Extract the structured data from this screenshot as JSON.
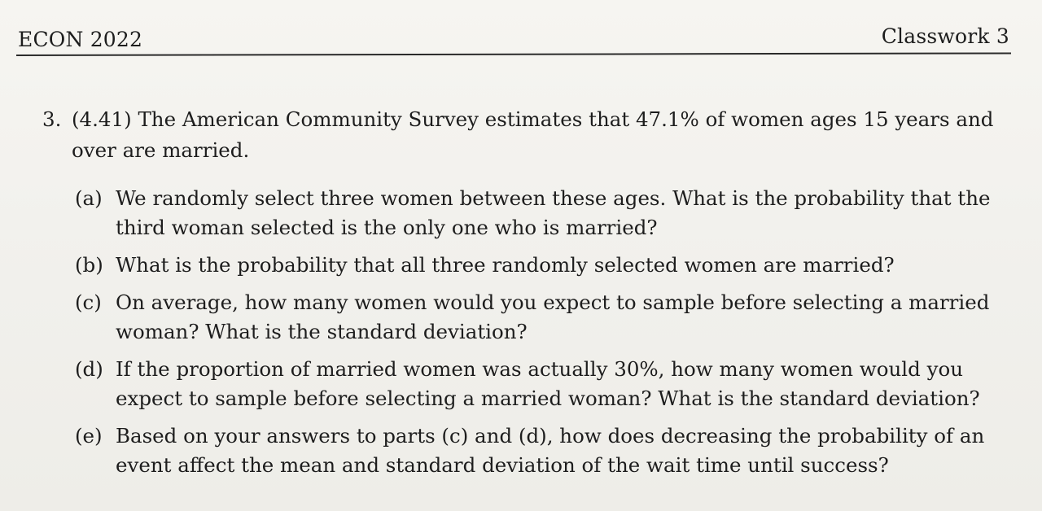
{
  "header": {
    "course": "ECON 2022",
    "assignment": "Classwork 3"
  },
  "problem": {
    "number": "3.",
    "text": "(4.41) The American Community Survey estimates that 47.1% of women ages 15 years and over are married."
  },
  "parts": [
    {
      "label": "(a)",
      "text": "We randomly select three women between these ages. What is the probability that the third woman selected is the only one who is married?"
    },
    {
      "label": "(b)",
      "text": "What is the probability that all three randomly selected women are married?"
    },
    {
      "label": "(c)",
      "text": "On average, how many women would you expect to sample before selecting a married woman? What is the standard deviation?"
    },
    {
      "label": "(d)",
      "text": "If the proportion of married women was actually 30%, how many women would you expect to sample before selecting a married woman? What is the standard deviation?"
    },
    {
      "label": "(e)",
      "text": "Based on your answers to parts (c) and (d), how does decreasing the probability of an event affect the mean and standard deviation of the wait time until success?"
    }
  ]
}
